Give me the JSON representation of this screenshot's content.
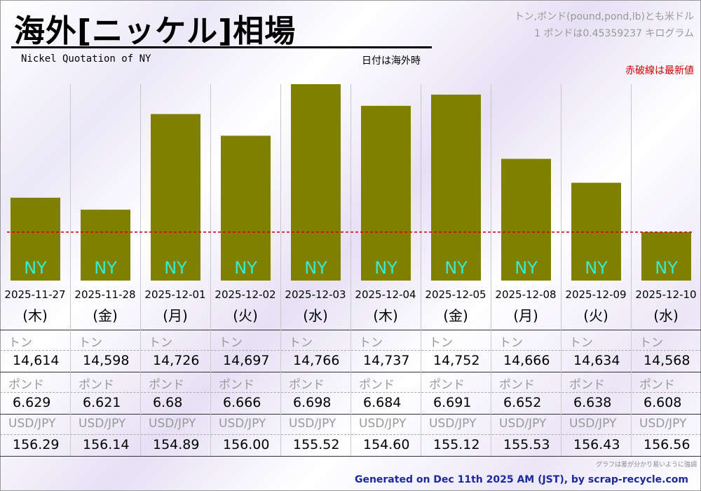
{
  "header": {
    "title": "海外[ニッケル]相場",
    "subtitle": "Nickel Quotation of NY",
    "date_note": "日付は海外時",
    "unit_note_1": "トン,ポンド(pound,pond,lb)とも米ドル",
    "unit_note_2": "1 ポンドは0.45359237 キログラム",
    "latest_note": "赤破線は最新値"
  },
  "chart_data": {
    "type": "bar",
    "categories": [
      "2025-11-27",
      "2025-11-28",
      "2025-12-01",
      "2025-12-02",
      "2025-12-03",
      "2025-12-04",
      "2025-12-05",
      "2025-12-08",
      "2025-12-09",
      "2025-12-10"
    ],
    "weekdays": [
      "(木)",
      "(金)",
      "(月)",
      "(火)",
      "(水)",
      "(木)",
      "(金)",
      "(月)",
      "(火)",
      "(水)"
    ],
    "bar_label": "NY",
    "series": [
      {
        "name": "トン",
        "values": [
          14614,
          14598,
          14726,
          14697,
          14766,
          14737,
          14752,
          14666,
          14634,
          14568
        ]
      }
    ],
    "ylim": [
      14550,
      14766
    ],
    "reference_line": {
      "label": "最新値",
      "value": 14568,
      "color": "#cc0000"
    },
    "bar_color": "#808000",
    "bar_text_color": "#33eecc"
  },
  "table": {
    "rows": [
      {
        "label": "トン",
        "values": [
          "14,614",
          "14,598",
          "14,726",
          "14,697",
          "14,766",
          "14,737",
          "14,752",
          "14,666",
          "14,634",
          "14,568"
        ]
      },
      {
        "label": "ポンド",
        "values": [
          "6.629",
          "6.621",
          "6.68",
          "6.666",
          "6.698",
          "6.684",
          "6.691",
          "6.652",
          "6.638",
          "6.608"
        ]
      },
      {
        "label": "USD/JPY",
        "values": [
          "156.29",
          "156.14",
          "154.89",
          "156.00",
          "155.52",
          "154.60",
          "155.12",
          "155.53",
          "156.43",
          "156.56"
        ]
      }
    ]
  },
  "footnote": "グラフは差が分かり易いように強調",
  "footer": "Generated on Dec 11th 2025 AM (JST), by scrap-recycle.com"
}
